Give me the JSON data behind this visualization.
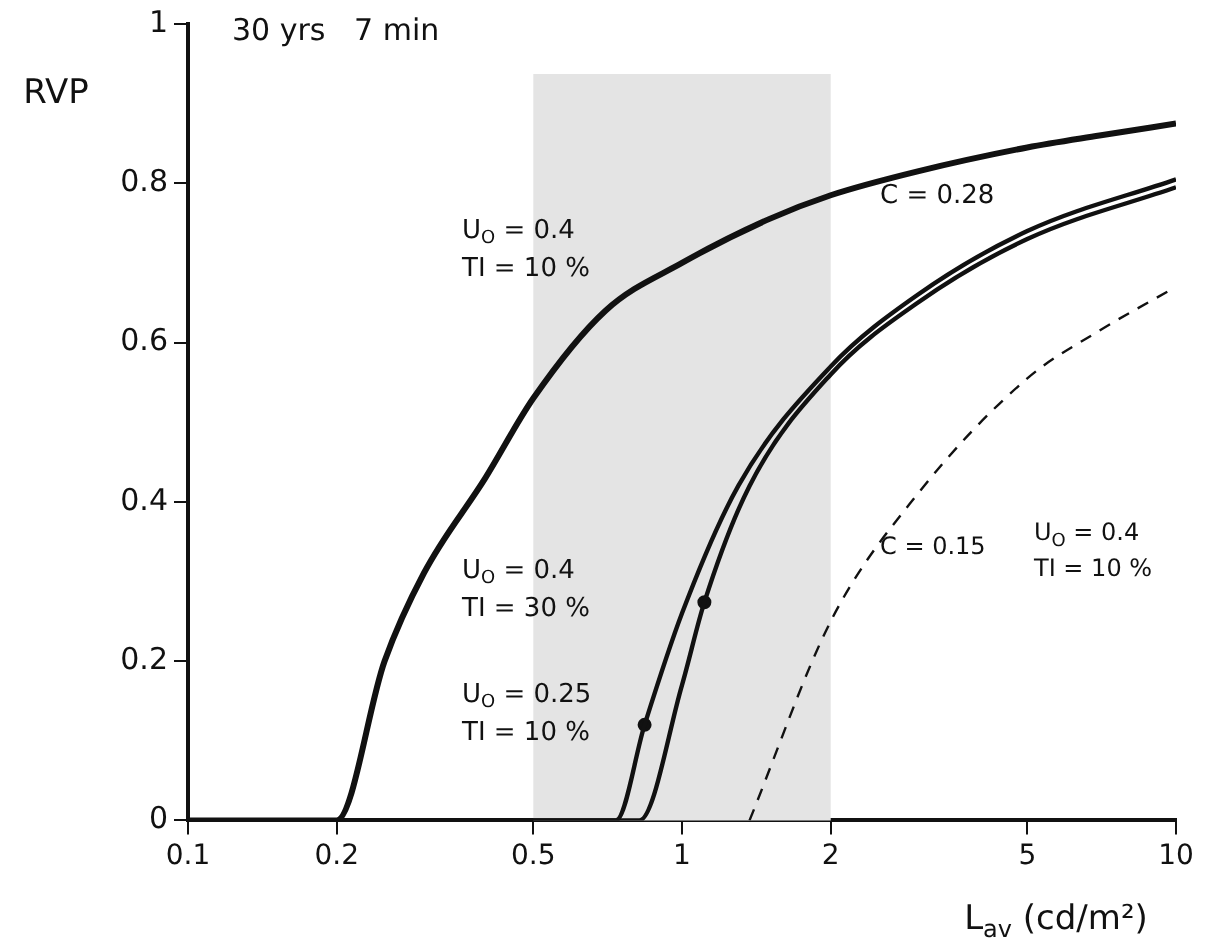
{
  "chart_data": {
    "type": "line",
    "title": "30 yrs   7 min",
    "xlabel": "L$_{av}$ (cd/m²)",
    "ylabel": "RVP",
    "log": "x",
    "xlim": [
      0.1,
      10
    ],
    "xticks": [
      0.1,
      0.2,
      0.5,
      1,
      2,
      5,
      10
    ],
    "ylim": [
      0,
      1
    ],
    "yticks": [
      0,
      0.2,
      0.4,
      0.6,
      0.8,
      1
    ],
    "grid": false,
    "legend": false,
    "marker": "none",
    "bands": [
      {
        "axis": "x",
        "from": 0.5,
        "to": 2,
        "color": "#e4e4e4"
      }
    ],
    "series": [
      {
        "color": "#111111",
        "x": [
          0.1,
          0.2,
          0.25,
          0.3,
          0.4,
          0.5,
          0.7,
          1,
          1.5,
          2,
          3,
          5,
          7,
          10
        ],
        "values": [
          0,
          0,
          0.2,
          0.31,
          0.43,
          0.53,
          0.64,
          0.7,
          0.755,
          0.785,
          0.815,
          0.845,
          0.86,
          0.875
        ]
      },
      {
        "color": "#111111",
        "x": [
          0.1,
          0.735,
          0.84,
          1,
          1.3,
          2,
          3,
          5,
          10
        ],
        "values": [
          0,
          0,
          0.12,
          0.26,
          0.42,
          0.57,
          0.66,
          0.74,
          0.805
        ]
      },
      {
        "color": "#111111",
        "x": [
          0.1,
          0.82,
          1,
          1.11,
          1.37,
          2,
          3,
          5,
          10
        ],
        "values": [
          0,
          0,
          0.17,
          0.274,
          0.42,
          0.56,
          0.65,
          0.73,
          0.795
        ]
      },
      {
        "color": "#111111",
        "line_style": "dashed",
        "x": [
          1.37,
          2,
          3,
          5,
          7,
          10
        ],
        "values": [
          0,
          0.25,
          0.41,
          0.555,
          0.615,
          0.67
        ]
      },
      {
        "type": "scatter",
        "marker": "circle",
        "color": "#111111",
        "x": [
          0.84,
          1.11
        ],
        "values": [
          0.12,
          0.274
        ]
      }
    ],
    "annotations": [
      "U$_{O}$ = 0.4\nTI = 10 %",
      "C = 0.28",
      "U$_{O}$ = 0.4\nTI = 30 %",
      "U$_{O}$ = 0.25\nTI = 10 %",
      "C = 0.15",
      "U$_{O}$ = 0.4\nTI = 10 %"
    ]
  }
}
